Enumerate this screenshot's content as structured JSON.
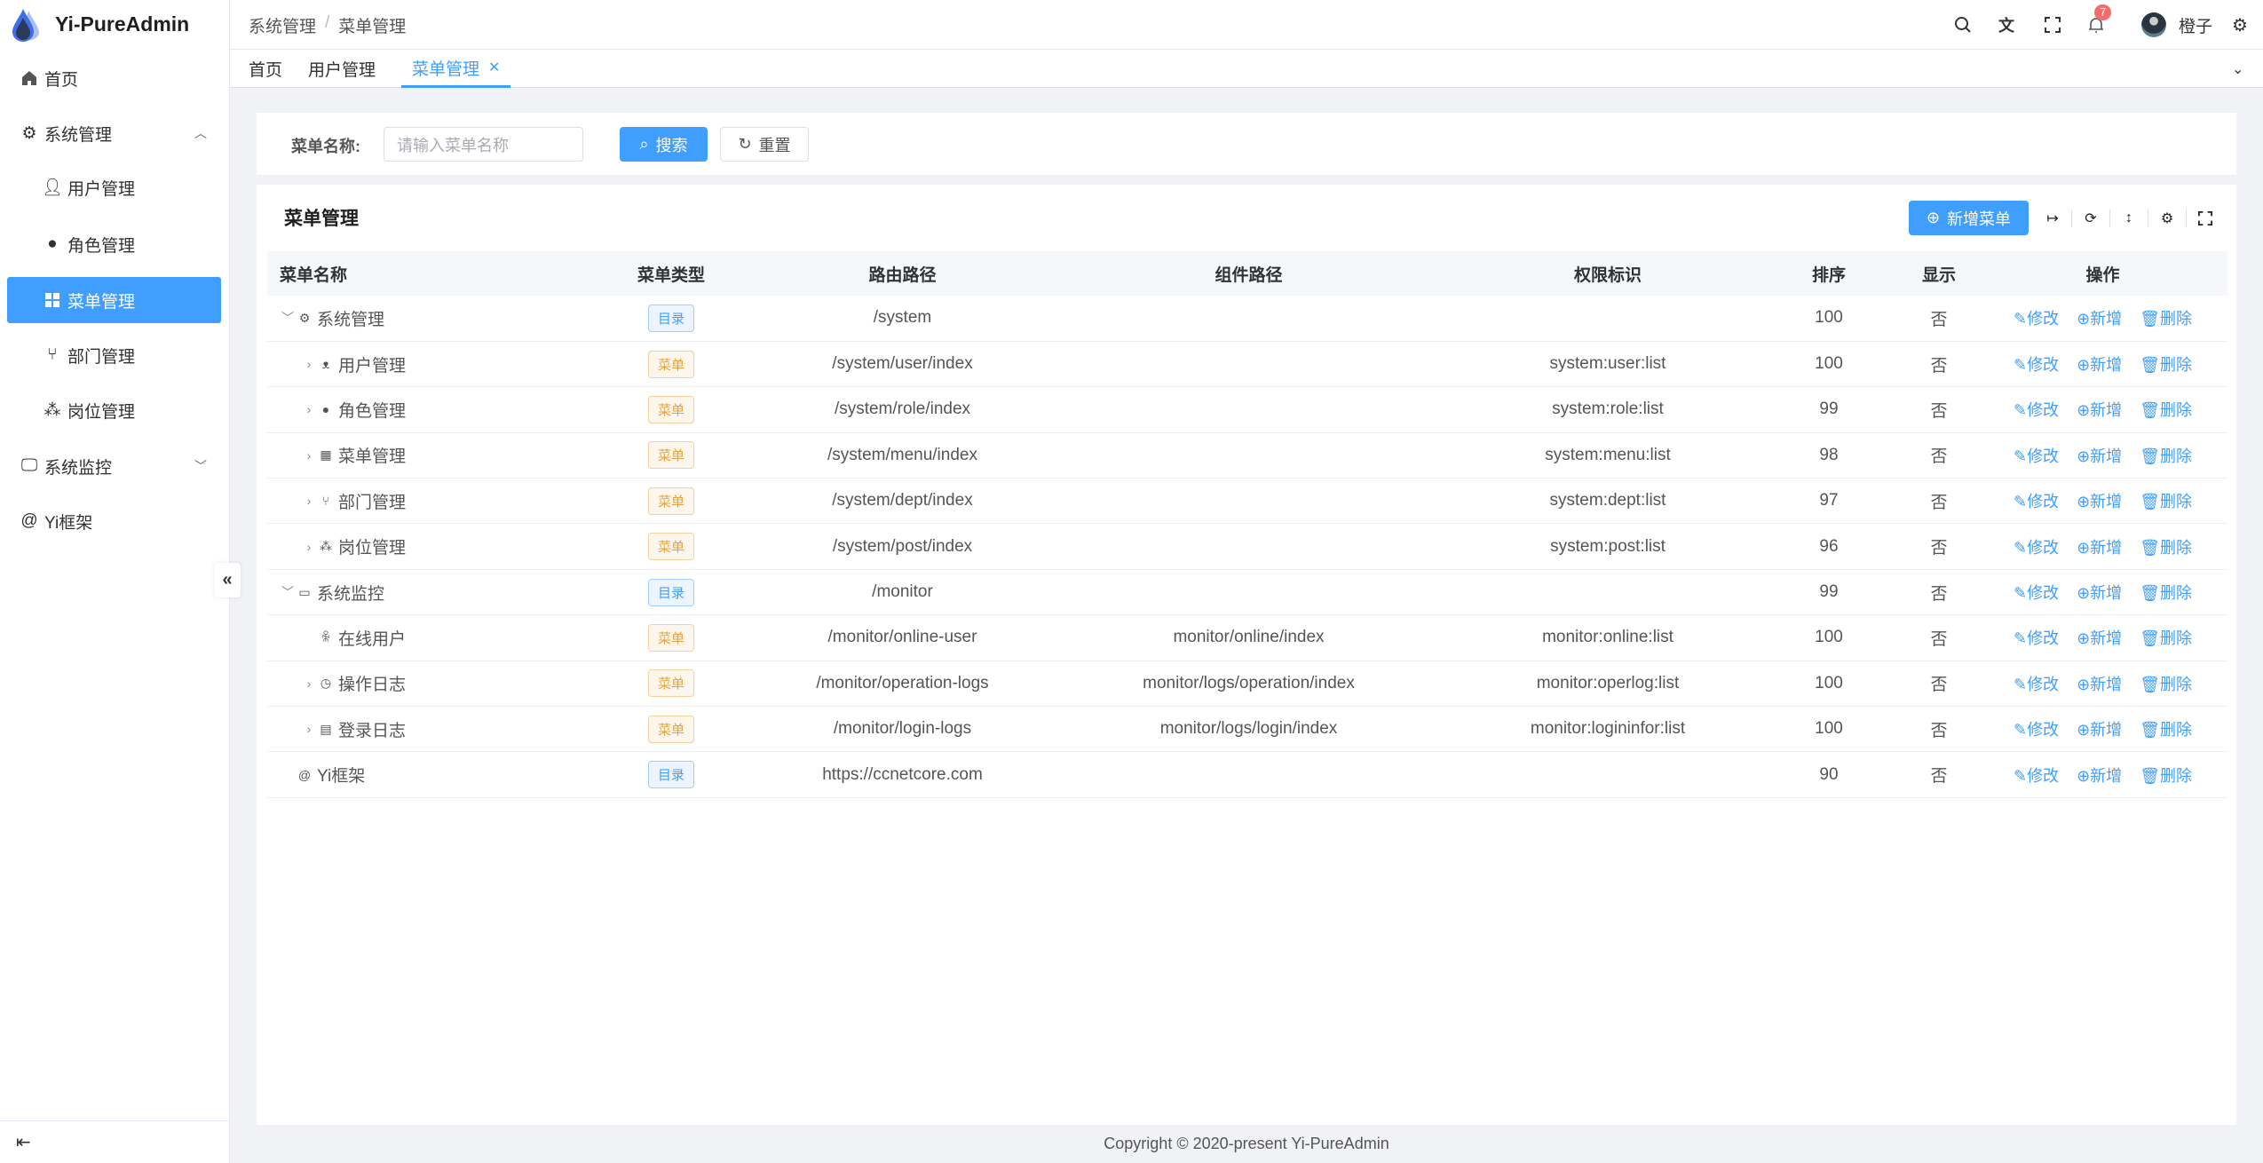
{
  "app": {
    "title": "Yi-PureAdmin"
  },
  "sidebar": {
    "items": [
      {
        "label": "首页",
        "icon": "home-icon"
      },
      {
        "label": "系统管理",
        "icon": "gear-icon",
        "expanded": true
      },
      {
        "label": "用户管理",
        "icon": "user-lock-icon"
      },
      {
        "label": "角色管理",
        "icon": "role-icon"
      },
      {
        "label": "菜单管理",
        "icon": "grid-icon",
        "active": true
      },
      {
        "label": "部门管理",
        "icon": "branch-icon"
      },
      {
        "label": "岗位管理",
        "icon": "org-icon"
      },
      {
        "label": "系统监控",
        "icon": "monitor-icon",
        "expanded": false
      },
      {
        "label": "Yi框架",
        "icon": "at-icon"
      }
    ]
  },
  "header": {
    "breadcrumb": [
      "系统管理",
      "菜单管理"
    ],
    "separator": "/",
    "notification_count": "7",
    "username": "橙子"
  },
  "tabs": [
    {
      "label": "首页"
    },
    {
      "label": "用户管理"
    },
    {
      "label": "菜单管理",
      "active": true
    }
  ],
  "search": {
    "label": "菜单名称:",
    "placeholder": "请输入菜单名称",
    "search_label": "搜索",
    "reset_label": "重置"
  },
  "table": {
    "title": "菜单管理",
    "add_label": "新增菜单",
    "columns": [
      "菜单名称",
      "菜单类型",
      "路由路径",
      "组件路径",
      "权限标识",
      "排序",
      "显示",
      "操作"
    ],
    "actions": {
      "edit": "修改",
      "add": "新增",
      "delete": "删除"
    },
    "rows": [
      {
        "name": "系统管理",
        "icon": "gear-icon",
        "level": 0,
        "expand": "down",
        "type": "目录",
        "type_kind": "dir",
        "route": "/system",
        "component": "",
        "perms": "",
        "sort": "100",
        "show": "否"
      },
      {
        "name": "用户管理",
        "icon": "user-lock-icon",
        "level": 1,
        "expand": "right",
        "type": "菜单",
        "type_kind": "menu",
        "route": "/system/user/index",
        "component": "",
        "perms": "system:user:list",
        "sort": "100",
        "show": "否"
      },
      {
        "name": "角色管理",
        "icon": "role-icon",
        "level": 1,
        "expand": "right",
        "type": "菜单",
        "type_kind": "menu",
        "route": "/system/role/index",
        "component": "",
        "perms": "system:role:list",
        "sort": "99",
        "show": "否"
      },
      {
        "name": "菜单管理",
        "icon": "grid-icon",
        "level": 1,
        "expand": "right",
        "type": "菜单",
        "type_kind": "menu",
        "route": "/system/menu/index",
        "component": "",
        "perms": "system:menu:list",
        "sort": "98",
        "show": "否"
      },
      {
        "name": "部门管理",
        "icon": "branch-icon",
        "level": 1,
        "expand": "right",
        "type": "菜单",
        "type_kind": "menu",
        "route": "/system/dept/index",
        "component": "",
        "perms": "system:dept:list",
        "sort": "97",
        "show": "否"
      },
      {
        "name": "岗位管理",
        "icon": "org-icon",
        "level": 1,
        "expand": "right",
        "type": "菜单",
        "type_kind": "menu",
        "route": "/system/post/index",
        "component": "",
        "perms": "system:post:list",
        "sort": "96",
        "show": "否"
      },
      {
        "name": "系统监控",
        "icon": "monitor-icon",
        "level": 0,
        "expand": "down",
        "type": "目录",
        "type_kind": "dir",
        "route": "/monitor",
        "component": "",
        "perms": "",
        "sort": "99",
        "show": "否"
      },
      {
        "name": "在线用户",
        "icon": "online-user-icon",
        "level": 1,
        "expand": "",
        "type": "菜单",
        "type_kind": "menu",
        "route": "/monitor/online-user",
        "component": "monitor/online/index",
        "perms": "monitor:online:list",
        "sort": "100",
        "show": "否"
      },
      {
        "name": "操作日志",
        "icon": "history-icon",
        "level": 1,
        "expand": "right",
        "type": "菜单",
        "type_kind": "menu",
        "route": "/monitor/operation-logs",
        "component": "monitor/logs/operation/index",
        "perms": "monitor:operlog:list",
        "sort": "100",
        "show": "否"
      },
      {
        "name": "登录日志",
        "icon": "window-icon",
        "level": 1,
        "expand": "right",
        "type": "菜单",
        "type_kind": "menu",
        "route": "/monitor/login-logs",
        "component": "monitor/logs/login/index",
        "perms": "monitor:logininfor:list",
        "sort": "100",
        "show": "否"
      },
      {
        "name": "Yi框架",
        "icon": "at-icon",
        "level": 0,
        "expand": "",
        "type": "目录",
        "type_kind": "dir",
        "route": "https://ccnetcore.com",
        "component": "",
        "perms": "",
        "sort": "90",
        "show": "否"
      }
    ]
  },
  "footer": {
    "text": "Copyright © 2020-present Yi-PureAdmin"
  },
  "colors": {
    "primary": "#409eff",
    "danger": "#f56c6c",
    "warning": "#e6a23c"
  }
}
